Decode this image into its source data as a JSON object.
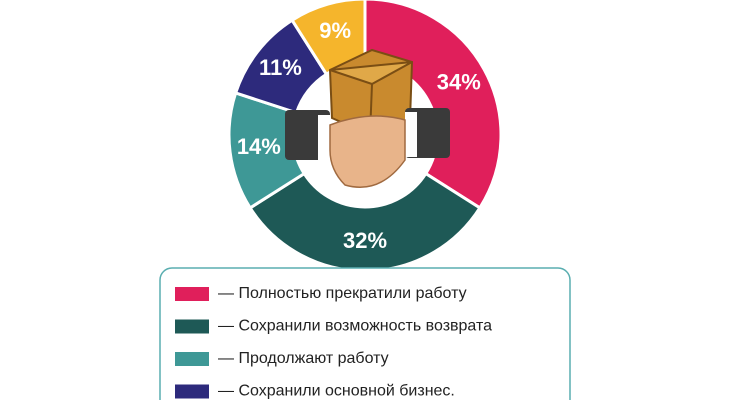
{
  "chart_data": {
    "type": "donut",
    "categories": [
      "— Полностью прекратили работу",
      "— Сохранили возможность возврата",
      "— Продолжают работу",
      "— Сохранили основной бизнес.",
      null
    ],
    "values": [
      34,
      32,
      14,
      11,
      9
    ],
    "value_labels": [
      "34%",
      "32%",
      "14%",
      "11%",
      "9%"
    ],
    "colors": [
      "#e01f5b",
      "#1e5956",
      "#3e9896",
      "#2d2a7c",
      "#f5b52c"
    ]
  }
}
